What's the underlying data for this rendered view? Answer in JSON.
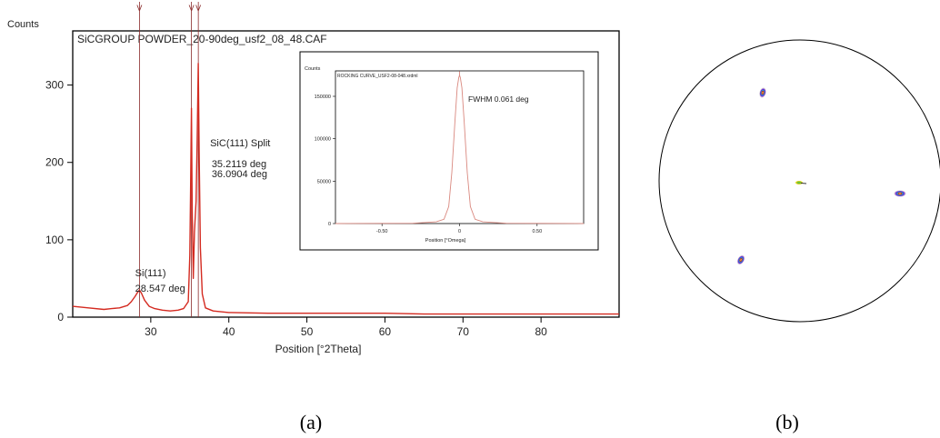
{
  "chart_data": [
    {
      "type": "line",
      "title": "SiCGROUP POWDER_20-90deg_usf2_08_48.CAF",
      "ylabel": "Counts",
      "xlabel": "Position [°2Theta]",
      "xlim": [
        20,
        90
      ],
      "ylim": [
        0,
        370
      ],
      "x_ticks": [
        30,
        40,
        50,
        60,
        70,
        80
      ],
      "y_ticks": [
        0,
        100,
        200,
        300
      ],
      "series": [
        {
          "x": [
            20,
            22,
            24,
            25,
            26,
            27,
            27.5,
            28,
            28.3,
            28.55,
            28.8,
            29.2,
            29.8,
            30.5,
            31.5,
            32.5,
            33.5,
            34.2,
            34.8,
            35.0,
            35.1,
            35.21,
            35.3,
            35.45,
            35.6,
            35.8,
            35.95,
            36.09,
            36.2,
            36.35,
            36.6,
            37,
            38,
            40,
            45,
            50,
            55,
            60,
            65,
            70,
            75,
            80,
            85,
            90
          ],
          "y": [
            14,
            12,
            10,
            11,
            12,
            15,
            20,
            27,
            32,
            35,
            31,
            22,
            14,
            11,
            9,
            8,
            9,
            11,
            20,
            80,
            160,
            270,
            140,
            50,
            110,
            150,
            230,
            328,
            210,
            90,
            30,
            12,
            8,
            6,
            5,
            5,
            5,
            5,
            4,
            4,
            4,
            4,
            4,
            4
          ]
        }
      ],
      "annotations": [
        {
          "text": "Si(111)",
          "x": 28.0,
          "y": 53
        },
        {
          "text": "28.547 deg",
          "x": 28.0,
          "y": 33
        },
        {
          "text": "SiC(111) Split",
          "x": 37.6,
          "y": 221
        },
        {
          "text": "35.2119 deg",
          "x": 37.8,
          "y": 194
        },
        {
          "text": "36.0904 deg",
          "x": 37.8,
          "y": 181
        }
      ],
      "peak_markers_x": [
        28.55,
        35.21,
        36.09
      ],
      "marker_glyph": "V",
      "color": "#d42a20"
    },
    {
      "type": "line",
      "title": "ROCKING CURVE_USF2-08-048.xrdml",
      "ylabel": "Counts",
      "xlabel": "Position [°Omega]",
      "xlim": [
        -0.8,
        0.8
      ],
      "ylim": [
        0,
        180000
      ],
      "x_ticks": [
        -0.5,
        0,
        0.5
      ],
      "x_tick_labels": [
        "-0.50",
        "0",
        "0.50"
      ],
      "y_ticks": [
        0,
        50000,
        100000,
        150000
      ],
      "series": [
        {
          "x": [
            -0.8,
            -0.3,
            -0.15,
            -0.1,
            -0.07,
            -0.05,
            -0.03,
            -0.015,
            -0.005,
            0.0,
            0.005,
            0.015,
            0.03,
            0.05,
            0.07,
            0.1,
            0.15,
            0.3,
            0.8
          ],
          "y": [
            0,
            300,
            2000,
            5000,
            20000,
            60000,
            120000,
            160000,
            172000,
            175000,
            172000,
            160000,
            120000,
            60000,
            20000,
            5000,
            2000,
            300,
            0
          ]
        }
      ],
      "annotations": [
        {
          "text": "FWHM 0.061 deg"
        }
      ],
      "color": "#d9887f"
    }
  ],
  "pole_figure": {
    "spots": [
      {
        "name": "pole-spot-top",
        "cx": 839,
        "cy": 102,
        "rx": 3,
        "ry": 5,
        "angle": 15
      },
      {
        "name": "pole-spot-right",
        "cx": 990,
        "cy": 213,
        "rx": 6,
        "ry": 3,
        "angle": 0
      },
      {
        "name": "pole-spot-bottom-left",
        "cx": 815,
        "cy": 286,
        "rx": 3,
        "ry": 5,
        "angle": 30
      }
    ],
    "center_spot": {
      "cx": 879,
      "cy": 201
    }
  },
  "captions": {
    "a": "(a)",
    "b": "(b)"
  }
}
